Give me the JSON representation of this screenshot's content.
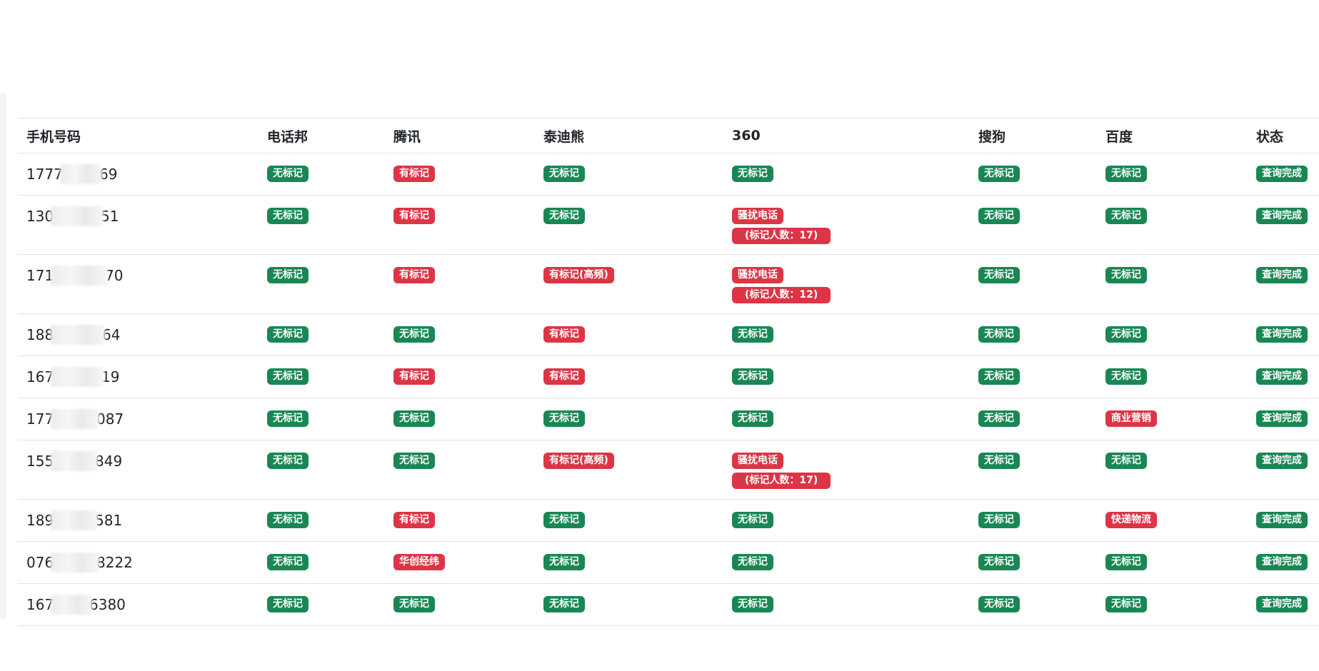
{
  "columns": [
    "手机号码",
    "电话邦",
    "腾讯",
    "泰迪熊",
    "360",
    "搜狗",
    "百度",
    "状态"
  ],
  "colors": {
    "ok": "#198754",
    "bad": "#dc3545"
  },
  "rows": [
    {
      "phone": [
        "1777",
        "69"
      ],
      "dhb": {
        "text": "无标记",
        "tone": "ok"
      },
      "tx": {
        "text": "有标记",
        "tone": "bad"
      },
      "tdx": {
        "text": "无标记",
        "tone": "ok"
      },
      "s360": [
        {
          "text": "无标记",
          "tone": "ok"
        }
      ],
      "sg": {
        "text": "无标记",
        "tone": "ok"
      },
      "bd": {
        "text": "无标记",
        "tone": "ok"
      },
      "status": {
        "text": "查询完成",
        "tone": "ok"
      }
    },
    {
      "phone": [
        "130",
        "51"
      ],
      "dhb": {
        "text": "无标记",
        "tone": "ok"
      },
      "tx": {
        "text": "有标记",
        "tone": "bad"
      },
      "tdx": {
        "text": "无标记",
        "tone": "ok"
      },
      "s360": [
        {
          "text": "骚扰电话",
          "tone": "bad"
        },
        {
          "text": "(标记人数：17)",
          "tone": "bad"
        }
      ],
      "sg": {
        "text": "无标记",
        "tone": "ok"
      },
      "bd": {
        "text": "无标记",
        "tone": "ok"
      },
      "status": {
        "text": "查询完成",
        "tone": "ok"
      }
    },
    {
      "phone": [
        "171",
        "70"
      ],
      "dhb": {
        "text": "无标记",
        "tone": "ok"
      },
      "tx": {
        "text": "有标记",
        "tone": "bad"
      },
      "tdx": {
        "text": "有标记(高频)",
        "tone": "bad"
      },
      "s360": [
        {
          "text": "骚扰电话",
          "tone": "bad"
        },
        {
          "text": "(标记人数：12)",
          "tone": "bad"
        }
      ],
      "sg": {
        "text": "无标记",
        "tone": "ok"
      },
      "bd": {
        "text": "无标记",
        "tone": "ok"
      },
      "status": {
        "text": "查询完成",
        "tone": "ok"
      }
    },
    {
      "phone": [
        "188",
        "64"
      ],
      "dhb": {
        "text": "无标记",
        "tone": "ok"
      },
      "tx": {
        "text": "无标记",
        "tone": "ok"
      },
      "tdx": {
        "text": "有标记",
        "tone": "bad"
      },
      "s360": [
        {
          "text": "无标记",
          "tone": "ok"
        }
      ],
      "sg": {
        "text": "无标记",
        "tone": "ok"
      },
      "bd": {
        "text": "无标记",
        "tone": "ok"
      },
      "status": {
        "text": "查询完成",
        "tone": "ok"
      }
    },
    {
      "phone": [
        "167",
        "19"
      ],
      "dhb": {
        "text": "无标记",
        "tone": "ok"
      },
      "tx": {
        "text": "有标记",
        "tone": "bad"
      },
      "tdx": {
        "text": "有标记",
        "tone": "bad"
      },
      "s360": [
        {
          "text": "无标记",
          "tone": "ok"
        }
      ],
      "sg": {
        "text": "无标记",
        "tone": "ok"
      },
      "bd": {
        "text": "无标记",
        "tone": "ok"
      },
      "status": {
        "text": "查询完成",
        "tone": "ok"
      }
    },
    {
      "phone": [
        "177",
        "087"
      ],
      "dhb": {
        "text": "无标记",
        "tone": "ok"
      },
      "tx": {
        "text": "无标记",
        "tone": "ok"
      },
      "tdx": {
        "text": "无标记",
        "tone": "ok"
      },
      "s360": [
        {
          "text": "无标记",
          "tone": "ok"
        }
      ],
      "sg": {
        "text": "无标记",
        "tone": "ok"
      },
      "bd": {
        "text": "商业营销",
        "tone": "bad"
      },
      "status": {
        "text": "查询完成",
        "tone": "ok"
      }
    },
    {
      "phone": [
        "155",
        "849"
      ],
      "dhb": {
        "text": "无标记",
        "tone": "ok"
      },
      "tx": {
        "text": "无标记",
        "tone": "ok"
      },
      "tdx": {
        "text": "有标记(高频)",
        "tone": "bad"
      },
      "s360": [
        {
          "text": "骚扰电话",
          "tone": "bad"
        },
        {
          "text": "(标记人数：17)",
          "tone": "bad"
        }
      ],
      "sg": {
        "text": "无标记",
        "tone": "ok"
      },
      "bd": {
        "text": "无标记",
        "tone": "ok"
      },
      "status": {
        "text": "查询完成",
        "tone": "ok"
      }
    },
    {
      "phone": [
        "189",
        "581"
      ],
      "dhb": {
        "text": "无标记",
        "tone": "ok"
      },
      "tx": {
        "text": "有标记",
        "tone": "bad"
      },
      "tdx": {
        "text": "无标记",
        "tone": "ok"
      },
      "s360": [
        {
          "text": "无标记",
          "tone": "ok"
        }
      ],
      "sg": {
        "text": "无标记",
        "tone": "ok"
      },
      "bd": {
        "text": "快递物流",
        "tone": "bad"
      },
      "status": {
        "text": "查询完成",
        "tone": "ok"
      }
    },
    {
      "phone": [
        "076",
        "8222"
      ],
      "dhb": {
        "text": "无标记",
        "tone": "ok"
      },
      "tx": {
        "text": "华创经纬",
        "tone": "bad"
      },
      "tdx": {
        "text": "无标记",
        "tone": "ok"
      },
      "s360": [
        {
          "text": "无标记",
          "tone": "ok"
        }
      ],
      "sg": {
        "text": "无标记",
        "tone": "ok"
      },
      "bd": {
        "text": "无标记",
        "tone": "ok"
      },
      "status": {
        "text": "查询完成",
        "tone": "ok"
      }
    },
    {
      "phone": [
        "167",
        "6380"
      ],
      "dhb": {
        "text": "无标记",
        "tone": "ok"
      },
      "tx": {
        "text": "无标记",
        "tone": "ok"
      },
      "tdx": {
        "text": "无标记",
        "tone": "ok"
      },
      "s360": [
        {
          "text": "无标记",
          "tone": "ok"
        }
      ],
      "sg": {
        "text": "无标记",
        "tone": "ok"
      },
      "bd": {
        "text": "无标记",
        "tone": "ok"
      },
      "status": {
        "text": "查询完成",
        "tone": "ok"
      }
    }
  ]
}
